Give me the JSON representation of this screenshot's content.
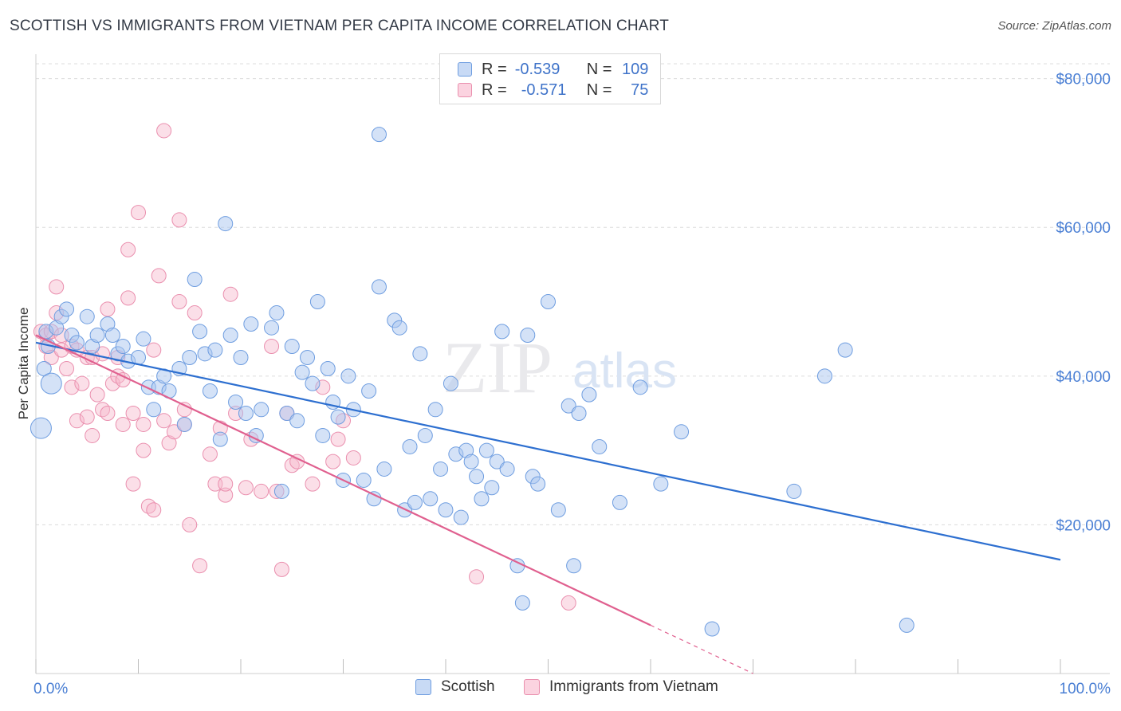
{
  "title": "SCOTTISH VS IMMIGRANTS FROM VIETNAM PER CAPITA INCOME CORRELATION CHART",
  "source": "Source: ZipAtlas.com",
  "legend": {
    "r_label": "R =",
    "n_label": "N =",
    "rows": [
      {
        "name": "Scottish",
        "r": "-0.539",
        "n": "109"
      },
      {
        "name": "Immigrants from Vietnam",
        "r": "-0.571",
        "n": "75"
      }
    ]
  },
  "colors": {
    "scottish_fill": "#a9c6f0",
    "scottish_stroke": "#6e9de0",
    "scottish_line": "#2d6fd0",
    "vietnam_fill": "#f6b8cc",
    "vietnam_stroke": "#ea8fae",
    "vietnam_line": "#e0608f"
  },
  "chart_data": {
    "type": "scatter",
    "title": "SCOTTISH VS IMMIGRANTS FROM VIETNAM PER CAPITA INCOME CORRELATION CHART",
    "xlabel": "",
    "ylabel": "Per Capita Income",
    "xlim": [
      0,
      100
    ],
    "ylim": [
      0,
      82000
    ],
    "x_tick_labels": [
      "0.0%",
      "100.0%"
    ],
    "y_ticks": [
      20000,
      40000,
      60000,
      80000
    ],
    "y_tick_labels": [
      "$20,000",
      "$40,000",
      "$60,000",
      "$80,000"
    ],
    "grid": true,
    "series": [
      {
        "name": "Scottish",
        "trend": {
          "x": [
            0,
            100
          ],
          "y": [
            44500,
            15300
          ]
        },
        "points": [
          [
            1,
            46000
          ],
          [
            1.2,
            44000
          ],
          [
            0.8,
            41000
          ],
          [
            1.5,
            39000
          ],
          [
            0.5,
            33000
          ],
          [
            2,
            46500
          ],
          [
            2.5,
            48000
          ],
          [
            3,
            49000
          ],
          [
            3.5,
            45500
          ],
          [
            4,
            44500
          ],
          [
            5,
            48000
          ],
          [
            5.5,
            44000
          ],
          [
            6,
            45500
          ],
          [
            7,
            47000
          ],
          [
            7.5,
            45500
          ],
          [
            8,
            43000
          ],
          [
            8.5,
            44000
          ],
          [
            9,
            42000
          ],
          [
            10,
            42500
          ],
          [
            10.5,
            45000
          ],
          [
            11,
            38500
          ],
          [
            11.5,
            35500
          ],
          [
            12,
            38500
          ],
          [
            12.5,
            40000
          ],
          [
            13,
            38000
          ],
          [
            14,
            41000
          ],
          [
            14.5,
            33500
          ],
          [
            15,
            42500
          ],
          [
            15.5,
            53000
          ],
          [
            16,
            46000
          ],
          [
            16.5,
            43000
          ],
          [
            17,
            38000
          ],
          [
            17.5,
            43500
          ],
          [
            18,
            31500
          ],
          [
            18.5,
            60500
          ],
          [
            19,
            45500
          ],
          [
            19.5,
            36500
          ],
          [
            20,
            42500
          ],
          [
            20.5,
            35000
          ],
          [
            21,
            47000
          ],
          [
            21.5,
            32000
          ],
          [
            22,
            35500
          ],
          [
            23,
            46500
          ],
          [
            23.5,
            48500
          ],
          [
            24,
            24500
          ],
          [
            24.5,
            35000
          ],
          [
            25,
            44000
          ],
          [
            25.5,
            34000
          ],
          [
            26,
            40500
          ],
          [
            26.5,
            42500
          ],
          [
            27,
            39000
          ],
          [
            27.5,
            50000
          ],
          [
            28,
            32000
          ],
          [
            28.5,
            41000
          ],
          [
            29,
            36500
          ],
          [
            29.5,
            34500
          ],
          [
            30,
            26000
          ],
          [
            30.5,
            40000
          ],
          [
            31,
            35500
          ],
          [
            32,
            26000
          ],
          [
            32.5,
            38000
          ],
          [
            33,
            23500
          ],
          [
            33.5,
            52000
          ],
          [
            34,
            27500
          ],
          [
            35,
            47500
          ],
          [
            35.5,
            46500
          ],
          [
            36,
            22000
          ],
          [
            36.5,
            30500
          ],
          [
            37,
            23000
          ],
          [
            37.5,
            43000
          ],
          [
            38,
            32000
          ],
          [
            38.5,
            23500
          ],
          [
            39,
            35500
          ],
          [
            39.5,
            27500
          ],
          [
            40,
            22000
          ],
          [
            40.5,
            39000
          ],
          [
            41,
            29500
          ],
          [
            41.5,
            21000
          ],
          [
            42,
            30000
          ],
          [
            42.5,
            28500
          ],
          [
            43,
            26500
          ],
          [
            43.5,
            23500
          ],
          [
            44,
            30000
          ],
          [
            44.5,
            25000
          ],
          [
            45,
            28500
          ],
          [
            45.5,
            46000
          ],
          [
            46,
            27500
          ],
          [
            47,
            14500
          ],
          [
            47.5,
            9500
          ],
          [
            48,
            45500
          ],
          [
            48.5,
            26500
          ],
          [
            49,
            25500
          ],
          [
            50,
            50000
          ],
          [
            51,
            22000
          ],
          [
            52,
            36000
          ],
          [
            52.5,
            14500
          ],
          [
            53,
            35000
          ],
          [
            54,
            37500
          ],
          [
            55,
            30500
          ],
          [
            57,
            23000
          ],
          [
            59,
            38500
          ],
          [
            61,
            25500
          ],
          [
            63,
            32500
          ],
          [
            66,
            6000
          ],
          [
            74,
            24500
          ],
          [
            77,
            40000
          ],
          [
            79,
            43500
          ],
          [
            85,
            6500
          ],
          [
            33.5,
            72500
          ]
        ]
      },
      {
        "name": "Immigrants from Vietnam",
        "trend": {
          "x": [
            0,
            60
          ],
          "y": [
            45500,
            6500
          ]
        },
        "trend_dashed": {
          "x": [
            60,
            70
          ],
          "y": [
            6500,
            0
          ]
        },
        "points": [
          [
            0.5,
            46000
          ],
          [
            1,
            45500
          ],
          [
            1,
            44000
          ],
          [
            1.5,
            42500
          ],
          [
            1.5,
            46000
          ],
          [
            2,
            52000
          ],
          [
            2,
            48500
          ],
          [
            2.5,
            43500
          ],
          [
            2.5,
            45500
          ],
          [
            3,
            41000
          ],
          [
            3.5,
            38500
          ],
          [
            3.5,
            44000
          ],
          [
            4,
            34000
          ],
          [
            4,
            43500
          ],
          [
            4.5,
            39000
          ],
          [
            5,
            34500
          ],
          [
            5,
            42500
          ],
          [
            5.5,
            32000
          ],
          [
            5.5,
            42500
          ],
          [
            6,
            37500
          ],
          [
            6.5,
            35500
          ],
          [
            6.5,
            43000
          ],
          [
            7,
            49000
          ],
          [
            7,
            35000
          ],
          [
            7.5,
            39000
          ],
          [
            8,
            42500
          ],
          [
            8,
            40000
          ],
          [
            8.5,
            33500
          ],
          [
            8.5,
            39500
          ],
          [
            9,
            57000
          ],
          [
            9,
            50500
          ],
          [
            9.5,
            35000
          ],
          [
            9.5,
            25500
          ],
          [
            10,
            62000
          ],
          [
            10.5,
            33500
          ],
          [
            10.5,
            30000
          ],
          [
            11,
            22500
          ],
          [
            11.5,
            22000
          ],
          [
            11.5,
            43500
          ],
          [
            12,
            53500
          ],
          [
            12.5,
            34000
          ],
          [
            12.5,
            73000
          ],
          [
            13,
            31000
          ],
          [
            13.5,
            32500
          ],
          [
            14,
            50000
          ],
          [
            14,
            61000
          ],
          [
            14.5,
            35500
          ],
          [
            14.5,
            33500
          ],
          [
            15,
            20000
          ],
          [
            15.5,
            48500
          ],
          [
            16,
            14500
          ],
          [
            17,
            29500
          ],
          [
            17.5,
            25500
          ],
          [
            18,
            33000
          ],
          [
            18.5,
            24000
          ],
          [
            18.5,
            25500
          ],
          [
            19,
            51000
          ],
          [
            19.5,
            35000
          ],
          [
            20.5,
            25000
          ],
          [
            21,
            31500
          ],
          [
            22,
            24500
          ],
          [
            23,
            44000
          ],
          [
            23.5,
            24500
          ],
          [
            24,
            14000
          ],
          [
            24.5,
            35000
          ],
          [
            25,
            28000
          ],
          [
            25.5,
            28500
          ],
          [
            27,
            25500
          ],
          [
            28,
            38500
          ],
          [
            29,
            28500
          ],
          [
            29.5,
            31500
          ],
          [
            30,
            34000
          ],
          [
            31,
            29000
          ],
          [
            43,
            13000
          ],
          [
            52,
            9500
          ]
        ]
      }
    ]
  }
}
